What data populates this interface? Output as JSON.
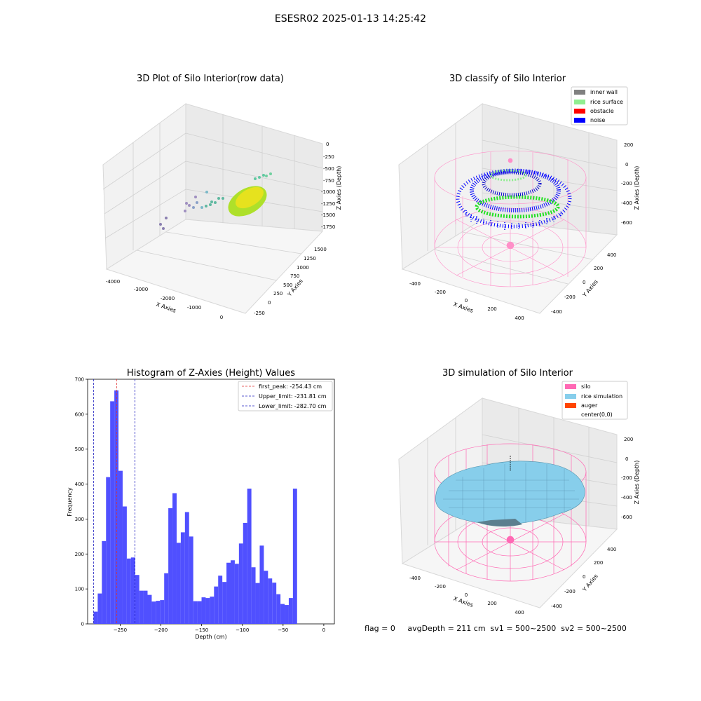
{
  "figure": {
    "suptitle": "ESESR02 2025-01-13 14:25:42",
    "footer": "flag = 0     avgDepth = 211 cm  sv1 = 500~2500  sv2 = 500~2500"
  },
  "panels": {
    "raw": {
      "title": "3D Plot of Silo Interior(row data)",
      "xlabel": "X Axies",
      "ylabel": "Y Axies",
      "zlabel": "Z Axies (Depth)",
      "xticks": [
        "-4000",
        "-3000",
        "-2000",
        "-1000",
        "0"
      ],
      "yticks": [
        "-250",
        "0",
        "250",
        "500",
        "750",
        "1000",
        "1250",
        "1500"
      ],
      "zticks": [
        "0",
        "-250",
        "-500",
        "-750",
        "-1000",
        "-1250",
        "-1500",
        "-1750"
      ]
    },
    "classify": {
      "title": "3D classify of Silo Interior",
      "xlabel": "X Axies",
      "ylabel": "Y Axies",
      "zlabel": "Z Axies (Depth)",
      "xticks": [
        "-400",
        "-200",
        "0",
        "200",
        "400"
      ],
      "yticks": [
        "-400",
        "-200",
        "0",
        "200",
        "400"
      ],
      "zticks": [
        "200",
        "0",
        "-200",
        "-400",
        "-600"
      ],
      "legend": [
        {
          "label": "inner wall",
          "color": "#808080"
        },
        {
          "label": "rice surface",
          "color": "#90ee90"
        },
        {
          "label": "obstacle",
          "color": "#ff0000"
        },
        {
          "label": "noise",
          "color": "#0000ff"
        }
      ]
    },
    "simulation": {
      "title": "3D simulation of Silo Interior",
      "xlabel": "X Axies",
      "ylabel": "Y Axies",
      "zlabel": "Z Axies (Depth)",
      "xticks": [
        "-400",
        "-200",
        "0",
        "200",
        "400"
      ],
      "yticks": [
        "-400",
        "-200",
        "0",
        "200",
        "400"
      ],
      "zticks": [
        "200",
        "0",
        "-200",
        "-400",
        "-600"
      ],
      "legend": [
        {
          "label": "silo",
          "color": "#ff69b4"
        },
        {
          "label": "rice simulation",
          "color": "#87ceeb"
        },
        {
          "label": "auger",
          "color": "#ff4500"
        },
        {
          "label": "center(0,0)",
          "color": ""
        }
      ]
    }
  },
  "chart_data": {
    "type": "bar",
    "title": "Histogram of Z-Axies (Height) Values",
    "xlabel": "Depth (cm)",
    "ylabel": "Frequency",
    "xlim": [
      -290,
      13
    ],
    "ylim": [
      0,
      700
    ],
    "xticks": [
      -250,
      -200,
      -150,
      -100,
      -50,
      0
    ],
    "yticks": [
      0,
      100,
      200,
      300,
      400,
      500,
      600,
      700
    ],
    "bin_start": -282.7,
    "bin_width": 5.1,
    "values": [
      35,
      87,
      237,
      420,
      637,
      668,
      438,
      336,
      187,
      190,
      140,
      95,
      95,
      83,
      64,
      66,
      68,
      145,
      331,
      374,
      232,
      262,
      320,
      250,
      65,
      65,
      76,
      74,
      78,
      107,
      138,
      120,
      175,
      182,
      172,
      230,
      289,
      387,
      162,
      117,
      224,
      152,
      130,
      118,
      85,
      57,
      54,
      74,
      387
    ],
    "bar_color": "#5050ff",
    "lines": [
      {
        "label": "first_peak: -254.43 cm",
        "x": -254.43,
        "color": "#e03030"
      },
      {
        "label": "Upper_limit: -231.81 cm",
        "x": -231.81,
        "color": "#2020c0"
      },
      {
        "label": "Lower_limit: -282.70 cm",
        "x": -282.7,
        "color": "#2020c0"
      }
    ],
    "legend_position": "top-right"
  }
}
